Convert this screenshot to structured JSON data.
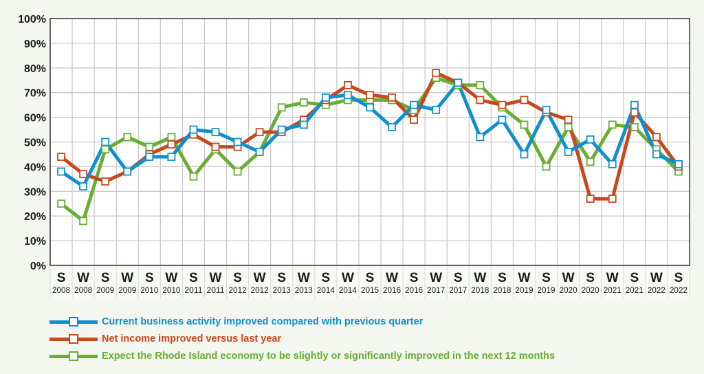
{
  "chart_data": {
    "type": "line",
    "categories": [
      {
        "season": "S",
        "year": "2008"
      },
      {
        "season": "W",
        "year": "2008"
      },
      {
        "season": "S",
        "year": "2009"
      },
      {
        "season": "W",
        "year": "2009"
      },
      {
        "season": "S",
        "year": "2010"
      },
      {
        "season": "W",
        "year": "2010"
      },
      {
        "season": "S",
        "year": "2011"
      },
      {
        "season": "W",
        "year": "2011"
      },
      {
        "season": "S",
        "year": "2012"
      },
      {
        "season": "W",
        "year": "2012"
      },
      {
        "season": "S",
        "year": "2013"
      },
      {
        "season": "W",
        "year": "2013"
      },
      {
        "season": "S",
        "year": "2014"
      },
      {
        "season": "W",
        "year": "2014"
      },
      {
        "season": "S",
        "year": "2015"
      },
      {
        "season": "W",
        "year": "2016"
      },
      {
        "season": "S",
        "year": "2016"
      },
      {
        "season": "W",
        "year": "2017"
      },
      {
        "season": "S",
        "year": "2017"
      },
      {
        "season": "W",
        "year": "2018"
      },
      {
        "season": "S",
        "year": "2018"
      },
      {
        "season": "W",
        "year": "2019"
      },
      {
        "season": "S",
        "year": "2019"
      },
      {
        "season": "W",
        "year": "2020"
      },
      {
        "season": "S",
        "year": "2020"
      },
      {
        "season": "W",
        "year": "2021"
      },
      {
        "season": "S",
        "year": "2021"
      },
      {
        "season": "W",
        "year": "2022"
      },
      {
        "season": "S",
        "year": "2022"
      }
    ],
    "yticks": [
      "0%",
      "10%",
      "20%",
      "30%",
      "40%",
      "50%",
      "60%",
      "70%",
      "80%",
      "90%",
      "100%"
    ],
    "ylim": [
      0,
      100
    ],
    "grid": true,
    "legend_position": "bottom",
    "series": [
      {
        "name": "Current business activity improved compared with previous quarter",
        "color": "#0e90cc",
        "values": [
          38,
          32,
          50,
          38,
          44,
          44,
          55,
          54,
          50,
          46,
          55,
          57,
          68,
          69,
          64,
          56,
          65,
          63,
          74,
          52,
          59,
          45,
          63,
          46,
          51,
          41,
          65,
          45,
          41
        ]
      },
      {
        "name": "Net income improved versus last year",
        "color": "#c8471d",
        "values": [
          44,
          37,
          34,
          38,
          45,
          49,
          53,
          48,
          48,
          54,
          54,
          59,
          67,
          73,
          69,
          68,
          59,
          78,
          74,
          67,
          65,
          67,
          62,
          59,
          27,
          27,
          62,
          52,
          40
        ]
      },
      {
        "name": "Expect the Rhode Island economy to be slightly or significantly improved in the next 12 months",
        "color": "#68ae32",
        "values": [
          25,
          18,
          47,
          52,
          48,
          52,
          36,
          47,
          38,
          46,
          64,
          66,
          65,
          67,
          67,
          67,
          63,
          76,
          73,
          73,
          64,
          57,
          40,
          56,
          42,
          57,
          56,
          47,
          38
        ]
      }
    ]
  }
}
